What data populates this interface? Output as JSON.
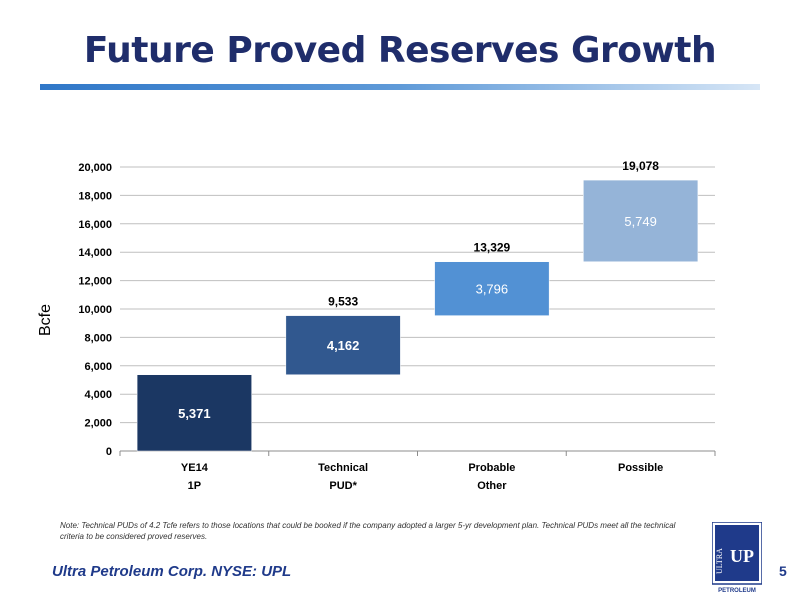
{
  "slide": {
    "title": "Future Proved Reserves Growth",
    "note": "Note: Technical PUDs of 4.2 Tcfe refers to those locations that could be booked if the company adopted a larger 5-yr development plan. Technical PUDs meet all the technical criteria to be considered proved reserves.",
    "footer": "Ultra Petroleum Corp. NYSE: UPL",
    "page_number": "5",
    "logo_text": "ULTRA",
    "logo_up": "UP",
    "logo_sub": "PETROLEUM"
  },
  "colors": {
    "title": "#1f2d6b",
    "bar_ye14": "#1b3763",
    "bar_technical": "#31588f",
    "bar_probable": "#5291d4",
    "bar_possible": "#95b4d8",
    "gridline": "#bfbfbf",
    "footer": "#1f3a8a"
  },
  "chart_data": {
    "type": "waterfall",
    "ylabel": "Bcfe",
    "ylim": [
      0,
      20000
    ],
    "yticks": [
      "0",
      "2,000",
      "4,000",
      "6,000",
      "8,000",
      "10,000",
      "12,000",
      "14,000",
      "16,000",
      "18,000",
      "20,000"
    ],
    "grid": true,
    "categories": [
      {
        "line1": "YE14",
        "line2": "1P"
      },
      {
        "line1": "Technical",
        "line2": "PUD*"
      },
      {
        "line1": "Probable",
        "line2": "Other"
      },
      {
        "line1": "Possible",
        "line2": ""
      }
    ],
    "bars": [
      {
        "start": 0,
        "end": 5371,
        "value_label": "5,371",
        "total_label": "",
        "color_key": "bar_ye14",
        "label_color": "#ffffff"
      },
      {
        "start": 5371,
        "end": 9533,
        "value_label": "4,162",
        "total_label": "9,533",
        "color_key": "bar_technical",
        "label_color": "#ffffff"
      },
      {
        "start": 9533,
        "end": 13329,
        "value_label": "3,796",
        "total_label": "13,329",
        "color_key": "bar_probable",
        "label_color": "#ffffff"
      },
      {
        "start": 13329,
        "end": 19078,
        "value_label": "5,749",
        "total_label": "19,078",
        "color_key": "bar_possible",
        "label_color": "#ffffff"
      }
    ]
  }
}
